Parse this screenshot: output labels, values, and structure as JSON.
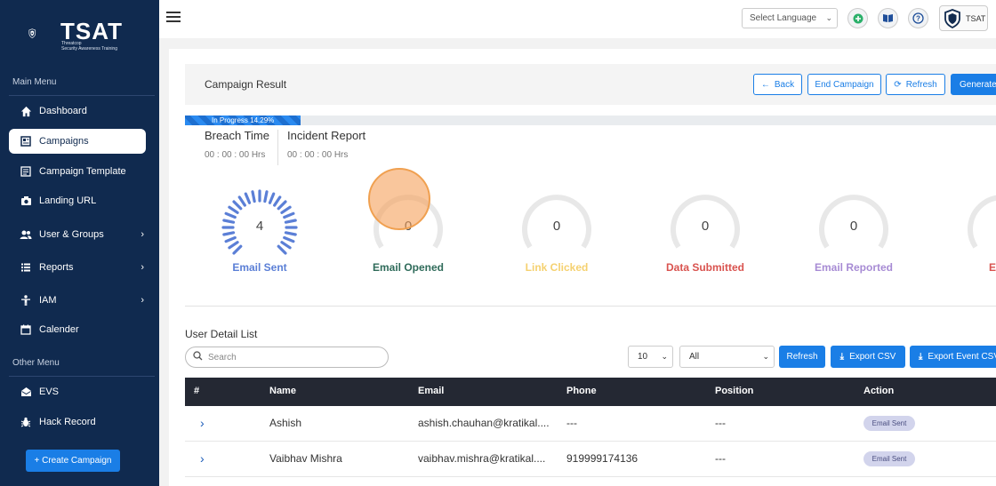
{
  "brand": {
    "name": "TSAT",
    "subtitle_line1": "Threatcop",
    "subtitle_line2": "Security Awareness Training"
  },
  "sidebar": {
    "main_menu_label": "Main Menu",
    "other_menu_label": "Other Menu",
    "items": [
      {
        "label": "Dashboard",
        "icon": "home-icon"
      },
      {
        "label": "Campaigns",
        "icon": "campaign-icon",
        "active": true
      },
      {
        "label": "Campaign Template",
        "icon": "template-icon"
      },
      {
        "label": "Landing URL",
        "icon": "camera-icon"
      },
      {
        "label": "User & Groups",
        "icon": "users-icon",
        "has_children": true
      },
      {
        "label": "Reports",
        "icon": "list-icon",
        "has_children": true
      },
      {
        "label": "IAM",
        "icon": "person-icon",
        "has_children": true
      },
      {
        "label": "Calender",
        "icon": "calendar-icon"
      }
    ],
    "other_items": [
      {
        "label": "EVS",
        "icon": "envelope-icon"
      },
      {
        "label": "Hack Record",
        "icon": "bug-icon"
      }
    ],
    "create_button": "+ Create Campaign"
  },
  "topbar": {
    "language_placeholder": "Select Language",
    "profile_label": "TSAT"
  },
  "header": {
    "title": "Campaign Result",
    "back_label": "Back",
    "end_label": "End Campaign",
    "refresh_label": "Refresh",
    "generate_label": "Generate"
  },
  "progress": {
    "label": "In Progress 14.29%",
    "percent": 14.29
  },
  "metrics": {
    "breach_label": "Breach Time",
    "breach_value": "00 : 00 : 00 Hrs",
    "incident_label": "Incident Report",
    "incident_value": "00 : 00 : 00 Hrs"
  },
  "gauges": [
    {
      "label": "Email Sent",
      "value": "4",
      "color": "#5b7fd6"
    },
    {
      "label": "Email Opened",
      "value": "0",
      "color": "#2f6b5a"
    },
    {
      "label": "Link Clicked",
      "value": "0",
      "color": "#f5d170"
    },
    {
      "label": "Data Submitted",
      "value": "0",
      "color": "#d9534f"
    },
    {
      "label": "Email Reported",
      "value": "0",
      "color": "#a78bd4"
    },
    {
      "label": "E",
      "value": "",
      "color": "#d9534f"
    }
  ],
  "list": {
    "title": "User Detail List",
    "search_placeholder": "Search",
    "page_size": "10",
    "filter": "All",
    "refresh_label": "Refresh",
    "export_csv_label": "Export CSV",
    "export_event_label": "Export Event CSV",
    "columns": [
      "#",
      "Name",
      "Email",
      "Phone",
      "Position",
      "Action"
    ],
    "rows": [
      {
        "name": "Ashish",
        "email": "ashish.chauhan@kratikal....",
        "phone": "---",
        "position": "---",
        "action": "Email Sent"
      },
      {
        "name": "Vaibhav Mishra",
        "email": "vaibhav.mishra@kratikal....",
        "phone": "919999174136",
        "position": "---",
        "action": "Email Sent"
      }
    ]
  }
}
